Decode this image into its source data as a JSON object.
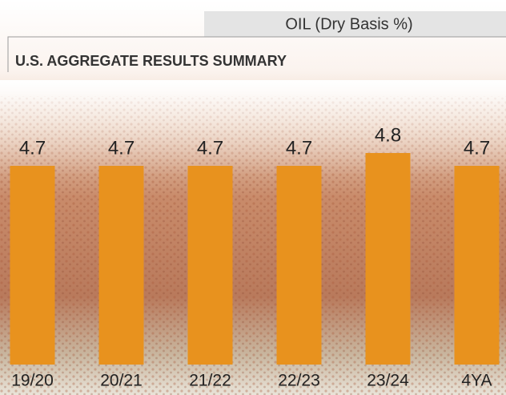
{
  "chart_data": {
    "type": "bar",
    "title": "OIL (Dry Basis %)",
    "subtitle": "U.S. AGGREGATE RESULTS SUMMARY",
    "categories": [
      "19/20",
      "20/21",
      "21/22",
      "22/23",
      "23/24",
      "4YA"
    ],
    "values": [
      4.7,
      4.7,
      4.7,
      4.7,
      4.8,
      4.7
    ],
    "color": "#e8921e",
    "ylim": [
      3.15,
      5.05
    ]
  }
}
